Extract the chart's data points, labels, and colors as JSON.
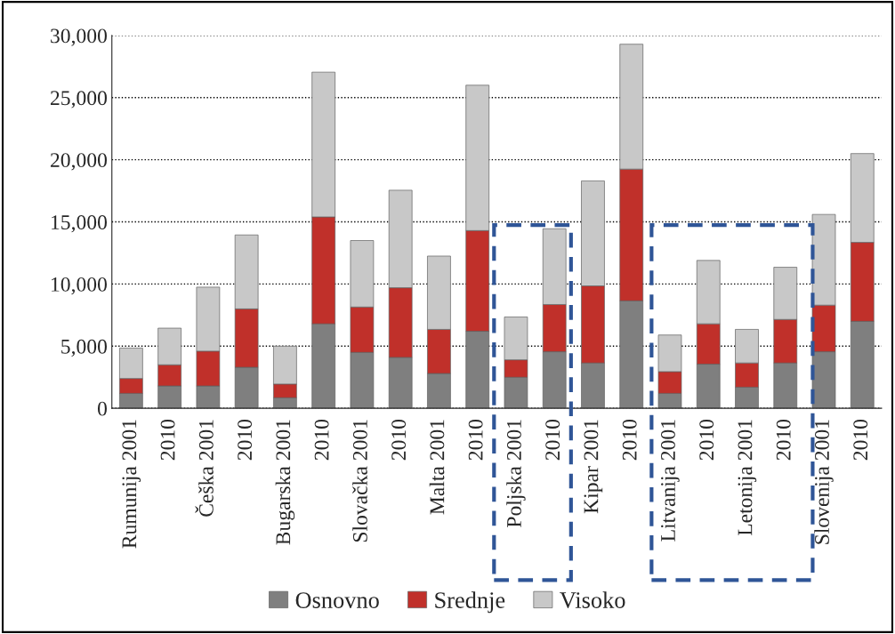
{
  "chart_data": {
    "type": "bar",
    "stacked": true,
    "categories": [
      "Rumunija 2001",
      "2010",
      "Češka 2001",
      "2010",
      "Bugarska 2001",
      "2010",
      "Slovačka 2001",
      "2010",
      "Malta 2001",
      "2010",
      "Poljska 2001",
      "2010",
      "Kipar 2001",
      "2010",
      "Litvanija 2001",
      "2010",
      "Letonija 2001",
      "2010",
      "Slovenija 2001",
      "2010"
    ],
    "series": [
      {
        "name": "Osnovno",
        "color": "#7f7f7f",
        "values": [
          1200,
          1800,
          1800,
          3300,
          850,
          6800,
          4500,
          4100,
          2800,
          6200,
          2500,
          4550,
          3650,
          8650,
          1200,
          3550,
          1700,
          3650,
          4550,
          7000
        ]
      },
      {
        "name": "Srednje",
        "color": "#c0302a",
        "values": [
          1200,
          1700,
          2800,
          4700,
          1100,
          8600,
          3650,
          5600,
          3550,
          8100,
          1400,
          3800,
          6200,
          10600,
          1750,
          3250,
          1950,
          3500,
          3750,
          6350
        ]
      },
      {
        "name": "Visoko",
        "color": "#c8c8c8",
        "values": [
          2450,
          2950,
          5150,
          5950,
          3050,
          11650,
          5350,
          7850,
          5900,
          11700,
          3450,
          6100,
          8450,
          10050,
          2950,
          5100,
          2700,
          4200,
          7300,
          7150
        ]
      }
    ],
    "ylim": [
      0,
      30000
    ],
    "yticks": [
      {
        "value": 0,
        "label": "0"
      },
      {
        "value": 5000,
        "label": "5,000"
      },
      {
        "value": 10000,
        "label": "10,000"
      },
      {
        "value": 15000,
        "label": "15,000"
      },
      {
        "value": 20000,
        "label": "20,000"
      },
      {
        "value": 25000,
        "label": "25,000"
      },
      {
        "value": 30000,
        "label": "30,000"
      }
    ],
    "grid": "y",
    "legend": "bottom"
  }
}
